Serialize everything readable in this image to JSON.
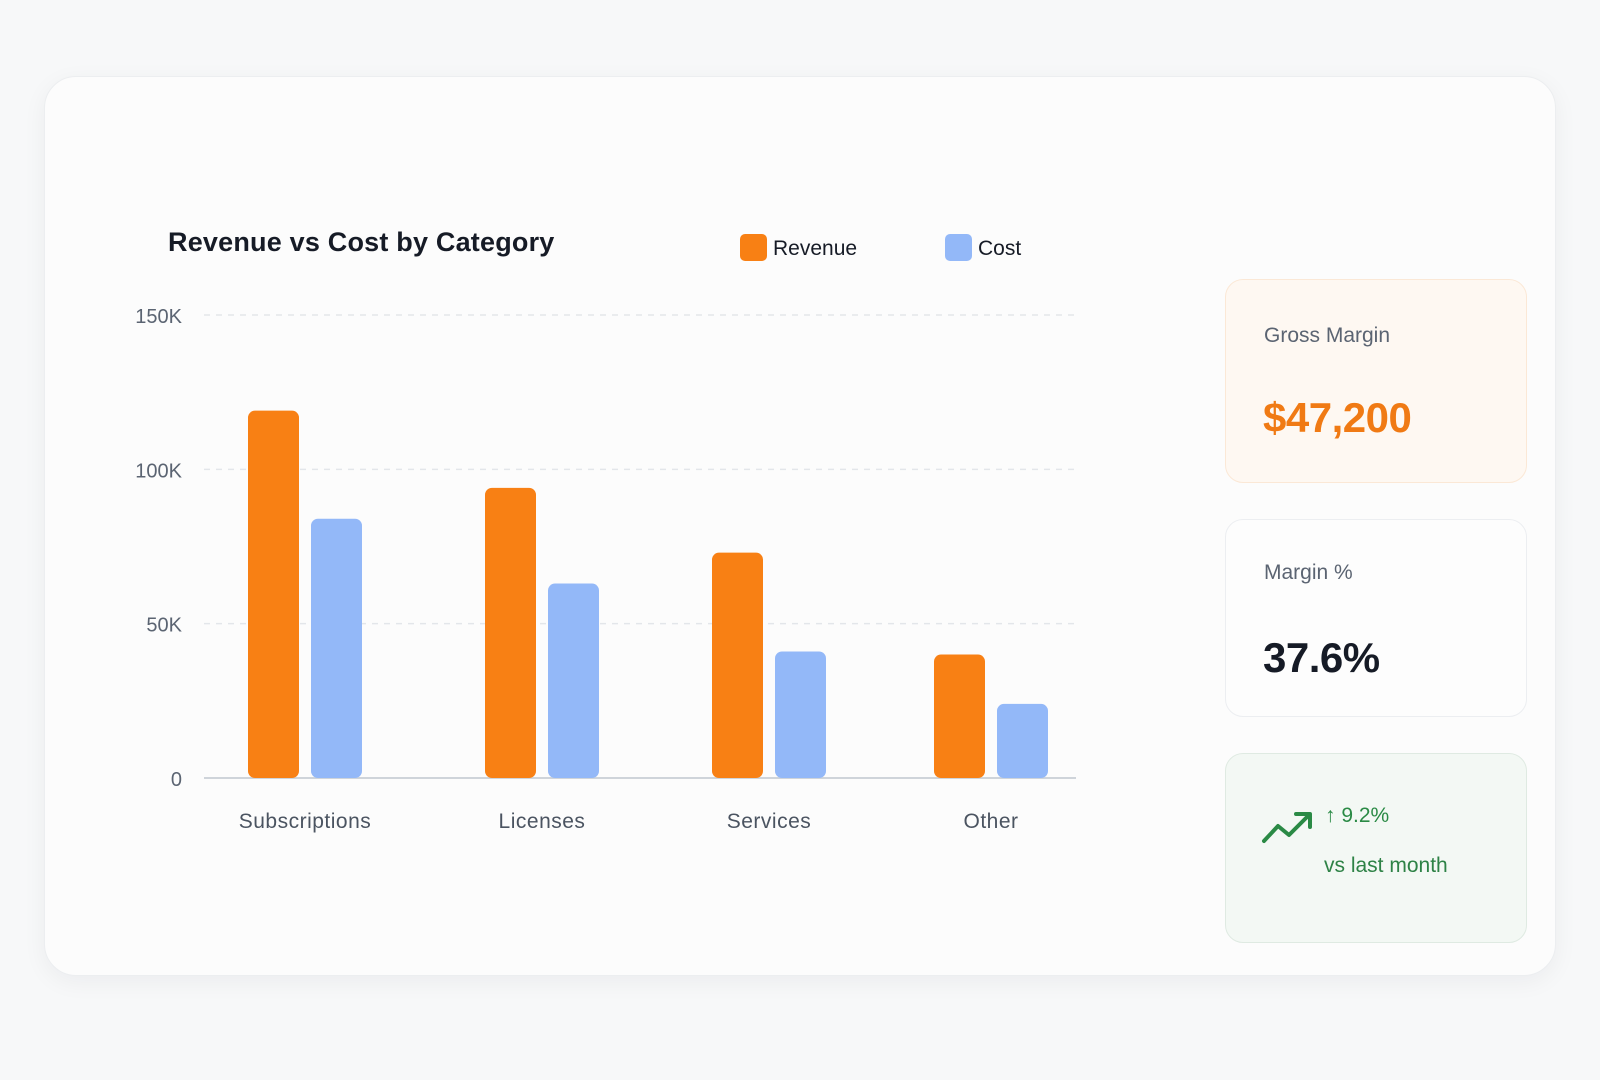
{
  "chart_data": {
    "type": "bar",
    "title": "Revenue vs Cost by Category",
    "categories": [
      "Subscriptions",
      "Licenses",
      "Services",
      "Other"
    ],
    "series": [
      {
        "name": "Revenue",
        "color": "#f88014",
        "values": [
          119000,
          94000,
          73000,
          40000
        ]
      },
      {
        "name": "Cost",
        "color": "#93b8f8",
        "values": [
          84000,
          63000,
          41000,
          24000
        ]
      }
    ],
    "y_ticks": [
      0,
      50000,
      100000,
      150000
    ],
    "y_tick_labels": [
      "0",
      "50K",
      "100K",
      "150K"
    ],
    "ylim": [
      0,
      150000
    ],
    "xlabel": "",
    "ylabel": "",
    "grid": true,
    "legend_position": "top-right"
  },
  "kpis": {
    "gross_margin": {
      "label": "Gross Margin",
      "value": "$47,200"
    },
    "margin_percent": {
      "label": "Margin %",
      "value": "37.6%"
    },
    "trend": {
      "change": "↑ 9.2%",
      "caption": "vs last month",
      "icon": "trending-up-icon"
    }
  },
  "colors": {
    "accent": "#f07a14",
    "positive": "#2a8a45",
    "text_primary": "#161b26",
    "text_secondary": "#5b6472"
  }
}
